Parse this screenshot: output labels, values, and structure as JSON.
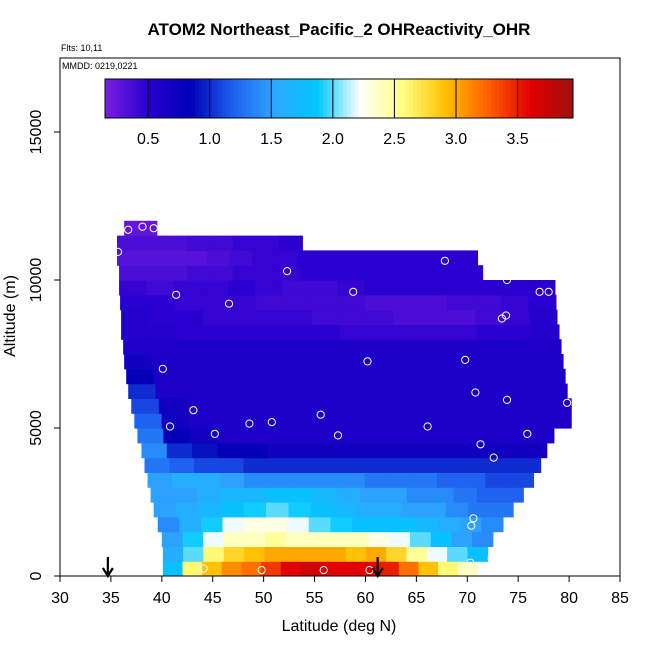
{
  "chart_data": {
    "type": "heatmap",
    "title": "ATOM2 Northeast_Pacific_2 OHReactivity_OHR",
    "flights_label": "Flts: 10,11",
    "dates_label": "MMDD: 0219,0221",
    "xlabel": "Latitude (deg N)",
    "ylabel": "Altitude (m)",
    "xlim": [
      30,
      85
    ],
    "ylim": [
      0,
      17500
    ],
    "x_ticks": [
      "30",
      "35",
      "40",
      "45",
      "50",
      "55",
      "60",
      "65",
      "70",
      "75",
      "80",
      "85"
    ],
    "y_ticks": [
      "0",
      "5000",
      "10000",
      "15000"
    ],
    "colorbar": {
      "range": [
        0.15,
        3.95
      ],
      "ticks": [
        "0.5",
        "1.0",
        "1.5",
        "2.0",
        "2.5",
        "3.0",
        "3.5"
      ],
      "stops": [
        "#7a1fe0",
        "#2a00d0",
        "#0000b4",
        "#1e5fef",
        "#2da8ff",
        "#00c8ff",
        "#ffffff",
        "#ffff80",
        "#ffc000",
        "#ff6000",
        "#e00000",
        "#a01010"
      ]
    },
    "arrows_at_latitude": [
      34.7,
      61.2
    ],
    "rows": [
      {
        "alt": 250,
        "lat_min": 40.1,
        "lat_max": 71.0,
        "values": [
          1.8,
          2.6,
          2.9,
          3.1,
          3.2,
          3.4,
          3.6,
          3.7,
          3.6,
          3.6,
          3.6,
          3.5,
          3.2,
          2.9,
          2.6,
          2.4
        ]
      },
      {
        "alt": 750,
        "lat_min": 40.1,
        "lat_max": 72.0,
        "values": [
          1.6,
          2.0,
          2.6,
          2.8,
          2.9,
          3.0,
          3.0,
          3.0,
          3.0,
          2.9,
          3.0,
          2.8,
          2.5,
          2.2,
          2.0,
          1.8
        ]
      },
      {
        "alt": 1250,
        "lat_min": 40.0,
        "lat_max": 72.5,
        "values": [
          1.5,
          1.9,
          2.2,
          2.4,
          2.4,
          2.5,
          2.4,
          2.4,
          2.4,
          2.4,
          2.3,
          2.2,
          2.0,
          1.8,
          1.5,
          1.4
        ]
      },
      {
        "alt": 1750,
        "lat_min": 39.6,
        "lat_max": 73.5,
        "values": [
          1.4,
          1.6,
          1.9,
          2.2,
          2.3,
          2.3,
          2.2,
          2.0,
          1.9,
          1.8,
          1.8,
          1.8,
          1.7,
          1.6,
          1.5,
          1.4
        ]
      },
      {
        "alt": 2250,
        "lat_min": 39.2,
        "lat_max": 74.5,
        "values": [
          1.5,
          1.6,
          1.7,
          1.8,
          1.9,
          2.0,
          1.9,
          1.8,
          1.7,
          1.6,
          1.6,
          1.5,
          1.5,
          1.4,
          1.3,
          1.3
        ]
      },
      {
        "alt": 2750,
        "lat_min": 38.9,
        "lat_max": 75.5,
        "values": [
          1.5,
          1.5,
          1.6,
          1.7,
          1.7,
          1.8,
          1.8,
          1.7,
          1.6,
          1.5,
          1.5,
          1.4,
          1.4,
          1.3,
          1.2,
          1.2
        ]
      },
      {
        "alt": 3250,
        "lat_min": 38.6,
        "lat_max": 76.5,
        "values": [
          1.5,
          1.6,
          1.6,
          1.5,
          1.4,
          1.4,
          1.4,
          1.4,
          1.4,
          1.3,
          1.3,
          1.3,
          1.2,
          1.2,
          1.1,
          1.1
        ]
      },
      {
        "alt": 3750,
        "lat_min": 38.3,
        "lat_max": 77.2,
        "values": [
          1.3,
          1.2,
          1.1,
          1.1,
          1.0,
          1.0,
          1.0,
          1.0,
          1.0,
          1.0,
          1.0,
          1.0,
          1.0,
          1.0,
          1.0,
          1.0
        ]
      },
      {
        "alt": 4250,
        "lat_min": 38.0,
        "lat_max": 77.8,
        "values": [
          1.4,
          1.0,
          0.9,
          0.8,
          0.8,
          0.7,
          0.7,
          0.7,
          0.7,
          0.7,
          0.7,
          0.7,
          0.7,
          0.7,
          0.7,
          0.7
        ]
      },
      {
        "alt": 4750,
        "lat_min": 37.6,
        "lat_max": 78.5,
        "values": [
          1.3,
          0.8,
          0.7,
          0.6,
          0.6,
          0.6,
          0.6,
          0.6,
          0.6,
          0.6,
          0.6,
          0.6,
          0.6,
          0.6,
          0.6,
          0.6
        ]
      },
      {
        "alt": 5250,
        "lat_min": 37.3,
        "lat_max": 80.2,
        "values": [
          1.2,
          0.7,
          0.6,
          0.6,
          0.6,
          0.6,
          0.6,
          0.6,
          0.6,
          0.6,
          0.6,
          0.6,
          0.6,
          0.6,
          0.6,
          0.6
        ]
      },
      {
        "alt": 5750,
        "lat_min": 37.0,
        "lat_max": 80.2,
        "values": [
          1.1,
          0.7,
          0.6,
          0.6,
          0.6,
          0.6,
          0.6,
          0.6,
          0.6,
          0.6,
          0.6,
          0.6,
          0.6,
          0.6,
          0.6,
          0.6
        ]
      },
      {
        "alt": 6250,
        "lat_min": 36.7,
        "lat_max": 79.8,
        "values": [
          1.0,
          0.6,
          0.6,
          0.6,
          0.6,
          0.6,
          0.6,
          0.6,
          0.6,
          0.6,
          0.6,
          0.6,
          0.6,
          0.6,
          0.6,
          0.6
        ]
      },
      {
        "alt": 6750,
        "lat_min": 36.5,
        "lat_max": 79.6,
        "values": [
          0.8,
          0.6,
          0.6,
          0.6,
          0.6,
          0.6,
          0.6,
          0.6,
          0.6,
          0.6,
          0.6,
          0.6,
          0.6,
          0.6,
          0.6,
          0.6
        ]
      },
      {
        "alt": 7250,
        "lat_min": 36.3,
        "lat_max": 79.4,
        "values": [
          0.7,
          0.6,
          0.6,
          0.6,
          0.6,
          0.6,
          0.6,
          0.6,
          0.6,
          0.6,
          0.6,
          0.6,
          0.6,
          0.6,
          0.6,
          0.6
        ]
      },
      {
        "alt": 7750,
        "lat_min": 36.2,
        "lat_max": 79.2,
        "values": [
          0.6,
          0.6,
          0.6,
          0.6,
          0.6,
          0.6,
          0.6,
          0.6,
          0.6,
          0.6,
          0.6,
          0.6,
          0.6,
          0.6,
          0.6,
          0.6
        ]
      },
      {
        "alt": 8250,
        "lat_min": 36.0,
        "lat_max": 79.0,
        "values": [
          0.55,
          0.55,
          0.5,
          0.5,
          0.5,
          0.5,
          0.5,
          0.5,
          0.45,
          0.45,
          0.45,
          0.45,
          0.45,
          0.5,
          0.5,
          0.55
        ]
      },
      {
        "alt": 8750,
        "lat_min": 36.0,
        "lat_max": 78.8,
        "values": [
          0.55,
          0.5,
          0.5,
          0.45,
          0.45,
          0.45,
          0.45,
          0.4,
          0.4,
          0.4,
          0.35,
          0.35,
          0.35,
          0.4,
          0.45,
          0.55
        ]
      },
      {
        "alt": 9250,
        "lat_min": 35.9,
        "lat_max": 78.7,
        "values": [
          0.5,
          0.5,
          0.45,
          0.45,
          0.45,
          0.4,
          0.4,
          0.4,
          0.4,
          0.35,
          0.35,
          0.35,
          0.4,
          0.4,
          0.45,
          0.5
        ]
      },
      {
        "alt": 9750,
        "lat_min": 35.8,
        "lat_max": 78.6,
        "values": [
          0.45,
          0.4,
          0.45,
          0.45,
          0.5,
          0.45,
          0.4,
          0.4,
          0.45,
          0.5,
          0.5,
          0.5,
          0.5,
          0.5,
          0.5,
          0.5
        ]
      },
      {
        "alt": 10250,
        "lat_min": 35.8,
        "lat_max": 71.5,
        "values": [
          0.35,
          0.35,
          0.35,
          0.4,
          0.4,
          0.45,
          0.45,
          0.45,
          0.5,
          0.5,
          0.5,
          0.5,
          0.5,
          0.5,
          0.5,
          0.5
        ]
      },
      {
        "alt": 10750,
        "lat_min": 35.6,
        "lat_max": 71.0,
        "values": [
          0.3,
          0.3,
          0.3,
          0.3,
          0.35,
          0.4,
          0.45,
          0.45,
          0.5,
          0.5,
          0.5,
          0.5,
          0.5,
          0.5,
          0.5,
          0.5
        ]
      },
      {
        "alt": 11250,
        "lat_min": 35.6,
        "lat_max": 53.8,
        "values": [
          0.35,
          0.35,
          0.35,
          0.4,
          0.4,
          0.45,
          0.45,
          0.5
        ]
      },
      {
        "alt": 11750,
        "lat_min": 36.3,
        "lat_max": 39.5,
        "values": [
          0.25,
          0.25,
          0.25
        ]
      }
    ],
    "sample_points": [
      [
        38.1,
        11800
      ],
      [
        36.7,
        11700
      ],
      [
        39.2,
        11750
      ],
      [
        35.7,
        10950
      ],
      [
        52.3,
        10300
      ],
      [
        67.8,
        10650
      ],
      [
        73.9,
        10000
      ],
      [
        41.4,
        9500
      ],
      [
        46.6,
        9200
      ],
      [
        58.8,
        9600
      ],
      [
        77.1,
        9600
      ],
      [
        78.0,
        9600
      ],
      [
        73.4,
        8700
      ],
      [
        73.8,
        8800
      ],
      [
        40.1,
        7000
      ],
      [
        60.2,
        7250
      ],
      [
        69.8,
        7300
      ],
      [
        70.8,
        6200
      ],
      [
        73.9,
        5950
      ],
      [
        79.8,
        5850
      ],
      [
        43.1,
        5600
      ],
      [
        55.6,
        5450
      ],
      [
        40.8,
        5050
      ],
      [
        48.6,
        5150
      ],
      [
        50.8,
        5200
      ],
      [
        45.2,
        4800
      ],
      [
        57.3,
        4750
      ],
      [
        66.1,
        5050
      ],
      [
        75.9,
        4800
      ],
      [
        71.3,
        4450
      ],
      [
        72.6,
        4000
      ],
      [
        70.6,
        1950
      ],
      [
        70.4,
        1700
      ],
      [
        70.3,
        450
      ],
      [
        72.4,
        600
      ],
      [
        49.8,
        200
      ],
      [
        55.9,
        200
      ],
      [
        60.4,
        200
      ],
      [
        44.1,
        250
      ]
    ]
  }
}
